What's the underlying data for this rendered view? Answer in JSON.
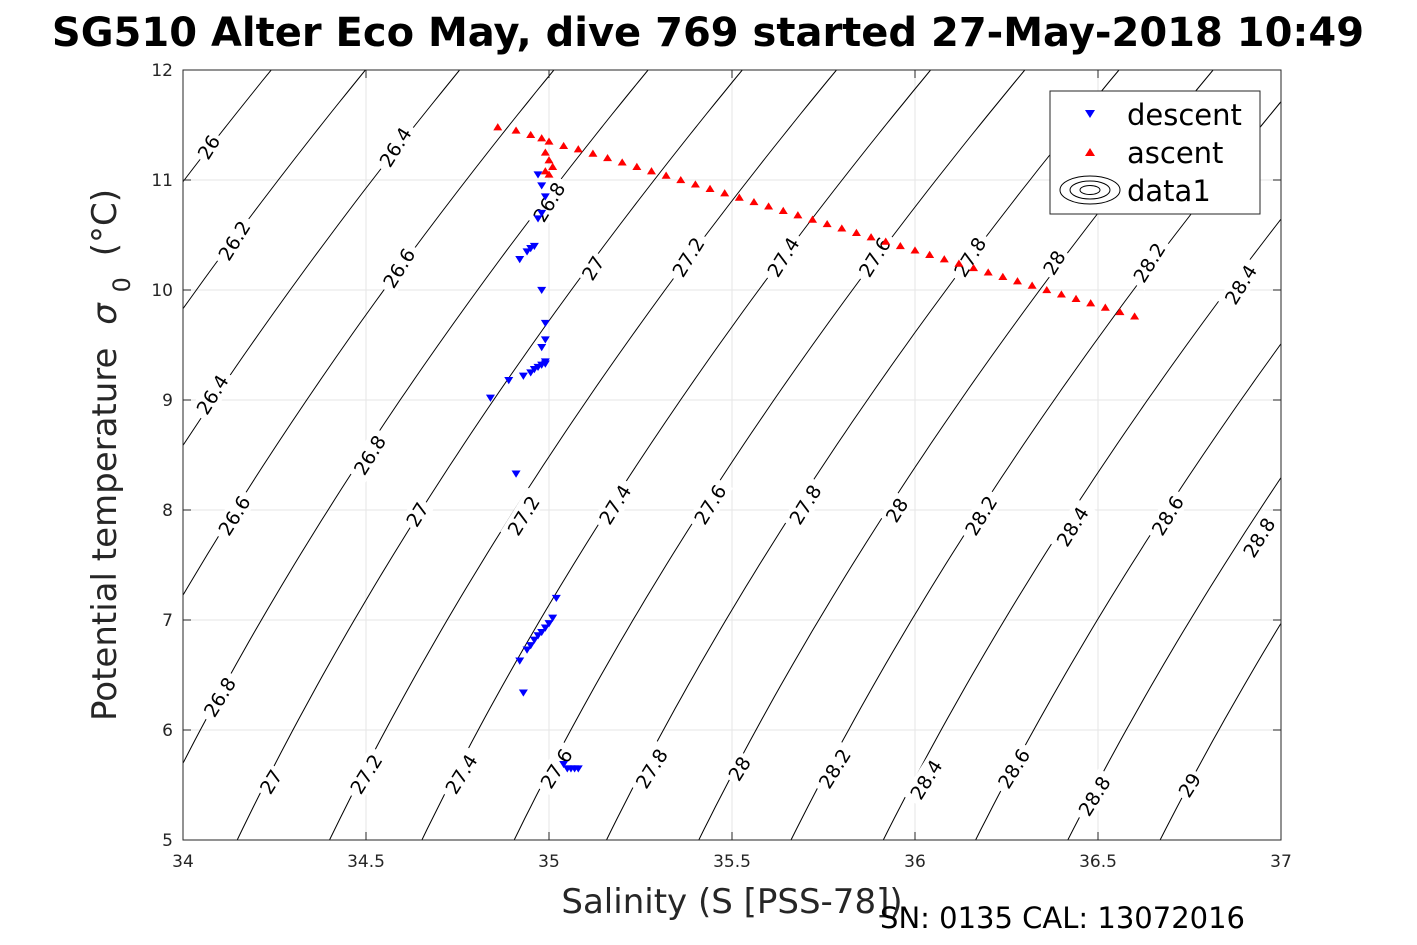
{
  "chart_data": {
    "type": "scatter",
    "title": "SG510 Alter Eco May, dive 769 started 27-May-2018 10:49",
    "xlabel": "Salinity (S [PSS-78])",
    "ylabel": "Potential temperature",
    "ylabel_symbol": "σ",
    "ylabel_subscript": "0",
    "ylabel_unit": "(°C)",
    "xlim": [
      34,
      37
    ],
    "ylim": [
      5,
      12
    ],
    "xticks": [
      34,
      34.5,
      35,
      35.5,
      36,
      36.5,
      37
    ],
    "xtick_labels": [
      "34",
      "34.5",
      "35",
      "35.5",
      "36",
      "36.5",
      "37"
    ],
    "yticks": [
      5,
      6,
      7,
      8,
      9,
      10,
      11,
      12
    ],
    "ytick_labels": [
      "5",
      "6",
      "7",
      "8",
      "9",
      "10",
      "11",
      "12"
    ],
    "grid": true,
    "legend_position": "top-right",
    "legend": [
      {
        "label": "descent",
        "marker": "triangle-down",
        "color": "#0000ff"
      },
      {
        "label": "ascent",
        "marker": "triangle-up",
        "color": "#ff0000"
      },
      {
        "label": "data1",
        "marker": "contour",
        "color": "#000000"
      }
    ],
    "footer": "SN: 0135  CAL: 13072016",
    "contours": {
      "color": "#000000",
      "levels": [
        26,
        26.2,
        26.4,
        26.6,
        26.8,
        27,
        27.2,
        27.4,
        27.6,
        27.8,
        28,
        28.2,
        28.4,
        28.6,
        28.8,
        29
      ],
      "labels": [
        {
          "text": "26",
          "s": 34.07,
          "t": 11.3
        },
        {
          "text": "26.2",
          "s": 34.14,
          "t": 10.45
        },
        {
          "text": "26.4",
          "s": 34.58,
          "t": 11.3
        },
        {
          "text": "26.6",
          "s": 34.59,
          "t": 10.2
        },
        {
          "text": "26.4",
          "s": 34.08,
          "t": 9.05
        },
        {
          "text": "26.8",
          "s": 34.51,
          "t": 8.5
        },
        {
          "text": "26.6",
          "s": 34.14,
          "t": 7.95
        },
        {
          "text": "27",
          "s": 34.64,
          "t": 7.96
        },
        {
          "text": "26.8",
          "s": 34.1,
          "t": 6.3
        },
        {
          "text": "27",
          "s": 34.24,
          "t": 5.53
        },
        {
          "text": "27.2",
          "s": 34.5,
          "t": 5.6
        },
        {
          "text": "27.4",
          "s": 34.76,
          "t": 5.6
        },
        {
          "text": "26.8",
          "s": 35.0,
          "t": 10.8
        },
        {
          "text": "27",
          "s": 35.12,
          "t": 10.2
        },
        {
          "text": "27.2",
          "s": 34.93,
          "t": 7.95
        },
        {
          "text": "27.4",
          "s": 35.18,
          "t": 8.05
        },
        {
          "text": "27.6",
          "s": 35.02,
          "t": 5.65
        },
        {
          "text": "27.8",
          "s": 35.28,
          "t": 5.65
        },
        {
          "text": "27.2",
          "s": 35.38,
          "t": 10.3
        },
        {
          "text": "27.4",
          "s": 35.64,
          "t": 10.3
        },
        {
          "text": "27.6",
          "s": 35.89,
          "t": 10.3
        },
        {
          "text": "27.8",
          "s": 36.15,
          "t": 10.3
        },
        {
          "text": "27.6",
          "s": 35.44,
          "t": 8.05
        },
        {
          "text": "27.8",
          "s": 35.7,
          "t": 8.05
        },
        {
          "text": "28",
          "s": 35.95,
          "t": 8.0
        },
        {
          "text": "28",
          "s": 35.52,
          "t": 5.65
        },
        {
          "text": "28.2",
          "s": 35.78,
          "t": 5.65
        },
        {
          "text": "28.4",
          "s": 36.03,
          "t": 5.55
        },
        {
          "text": "28",
          "s": 36.38,
          "t": 10.25
        },
        {
          "text": "28.2",
          "s": 36.64,
          "t": 10.25
        },
        {
          "text": "28.4",
          "s": 36.89,
          "t": 10.05
        },
        {
          "text": "28.2",
          "s": 36.18,
          "t": 7.95
        },
        {
          "text": "28.4",
          "s": 36.43,
          "t": 7.85
        },
        {
          "text": "28.6",
          "s": 36.69,
          "t": 7.95
        },
        {
          "text": "28.8",
          "s": 36.94,
          "t": 7.75
        },
        {
          "text": "28.6",
          "s": 36.27,
          "t": 5.65
        },
        {
          "text": "28.8",
          "s": 36.49,
          "t": 5.4
        },
        {
          "text": "29",
          "s": 36.75,
          "t": 5.5
        }
      ]
    },
    "series": [
      {
        "name": "descent",
        "color": "#0000ff",
        "marker": "triangle-down",
        "x": [
          34.97,
          34.98,
          34.99,
          34.98,
          34.97,
          34.96,
          34.95,
          34.94,
          34.92,
          34.98,
          34.99,
          34.99,
          34.98,
          34.99,
          34.99,
          34.98,
          34.97,
          34.96,
          34.95,
          34.93,
          34.89,
          34.84,
          34.91,
          35.02,
          35.01,
          35.0,
          34.99,
          34.98,
          34.97,
          34.96,
          34.95,
          34.94,
          34.92,
          34.93,
          35.04,
          35.05,
          35.06,
          35.07,
          35.08
        ],
        "y": [
          11.05,
          10.95,
          10.85,
          10.7,
          10.65,
          10.4,
          10.38,
          10.35,
          10.28,
          10.0,
          9.7,
          9.55,
          9.48,
          9.35,
          9.33,
          9.32,
          9.3,
          9.28,
          9.25,
          9.22,
          9.18,
          9.02,
          8.33,
          7.2,
          7.02,
          6.97,
          6.93,
          6.89,
          6.86,
          6.82,
          6.77,
          6.73,
          6.63,
          6.34,
          5.69,
          5.65,
          5.65,
          5.65,
          5.65
        ]
      },
      {
        "name": "ascent",
        "color": "#ff0000",
        "marker": "triangle-up",
        "x": [
          34.86,
          34.91,
          34.95,
          34.98,
          35.0,
          35.04,
          35.08,
          35.12,
          35.16,
          35.2,
          35.24,
          35.28,
          35.32,
          35.36,
          35.4,
          35.44,
          35.48,
          35.52,
          35.56,
          35.6,
          35.64,
          35.68,
          35.72,
          35.76,
          35.8,
          35.84,
          35.88,
          35.92,
          35.96,
          36.0,
          36.04,
          36.08,
          36.12,
          36.16,
          36.2,
          36.24,
          36.28,
          36.32,
          36.36,
          36.4,
          36.44,
          36.48,
          36.52,
          36.56,
          36.6,
          34.99,
          35.0,
          35.01,
          34.99,
          35.0
        ],
        "y": [
          11.48,
          11.45,
          11.41,
          11.38,
          11.35,
          11.31,
          11.28,
          11.24,
          11.2,
          11.16,
          11.12,
          11.08,
          11.04,
          11.0,
          10.96,
          10.92,
          10.88,
          10.84,
          10.8,
          10.76,
          10.72,
          10.68,
          10.64,
          10.6,
          10.56,
          10.52,
          10.48,
          10.44,
          10.4,
          10.36,
          10.32,
          10.28,
          10.24,
          10.2,
          10.16,
          10.12,
          10.08,
          10.04,
          10.0,
          9.96,
          9.92,
          9.88,
          9.84,
          9.8,
          9.76,
          11.25,
          11.18,
          11.12,
          11.08,
          11.05
        ]
      }
    ]
  }
}
